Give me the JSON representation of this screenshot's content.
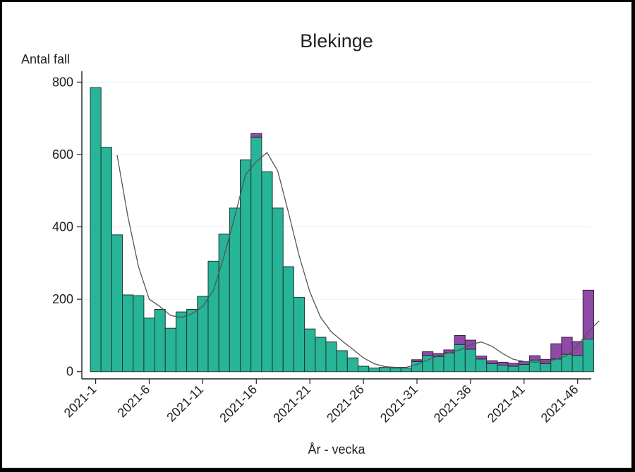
{
  "chart_data": {
    "type": "bar",
    "stacked": true,
    "title": "Blekinge",
    "ylabel": "Antal fall",
    "xlabel": "År - vecka",
    "ylim": [
      -20,
      830
    ],
    "yticks": [
      0,
      200,
      400,
      600,
      800
    ],
    "xticks": [
      "2021-1",
      "2021-6",
      "2021-11",
      "2021-16",
      "2021-21",
      "2021-26",
      "2021-31",
      "2021-36",
      "2021-41",
      "2021-46"
    ],
    "grid": true,
    "weeks": [
      1,
      2,
      3,
      4,
      5,
      6,
      7,
      8,
      9,
      10,
      11,
      12,
      13,
      14,
      15,
      16,
      17,
      18,
      19,
      20,
      21,
      22,
      23,
      24,
      25,
      26,
      27,
      28,
      29,
      30,
      31,
      32,
      33,
      34,
      35,
      36,
      37,
      38,
      39,
      40,
      41,
      42,
      43,
      44,
      45,
      46,
      47
    ],
    "series": [
      {
        "color": "#27b497",
        "values": [
          785,
          620,
          378,
          212,
          210,
          148,
          172,
          120,
          165,
          172,
          208,
          305,
          380,
          452,
          585,
          648,
          552,
          452,
          290,
          205,
          118,
          95,
          82,
          58,
          38,
          15,
          10,
          12,
          10,
          10,
          28,
          45,
          42,
          52,
          75,
          62,
          35,
          22,
          18,
          15,
          20,
          32,
          22,
          35,
          48,
          45,
          90
        ]
      },
      {
        "color": "#8e4aa6",
        "values": [
          0,
          0,
          0,
          0,
          0,
          0,
          0,
          0,
          0,
          0,
          0,
          0,
          0,
          0,
          0,
          10,
          0,
          0,
          0,
          0,
          0,
          0,
          0,
          0,
          0,
          0,
          0,
          0,
          0,
          0,
          5,
          10,
          8,
          8,
          25,
          25,
          8,
          8,
          8,
          8,
          8,
          12,
          12,
          42,
          47,
          38,
          135
        ]
      }
    ],
    "moving_average": {
      "color": "#555555",
      "start_week": 3,
      "values": [
        598,
        430,
        290,
        200,
        180,
        155,
        150,
        160,
        180,
        225,
        320,
        430,
        545,
        580,
        605,
        555,
        440,
        320,
        220,
        150,
        110,
        85,
        62,
        38,
        22,
        14,
        12,
        12,
        20,
        32,
        45,
        52,
        60,
        75,
        82,
        70,
        50,
        34,
        28,
        26,
        28,
        34,
        44,
        72,
        110,
        140
      ]
    }
  }
}
